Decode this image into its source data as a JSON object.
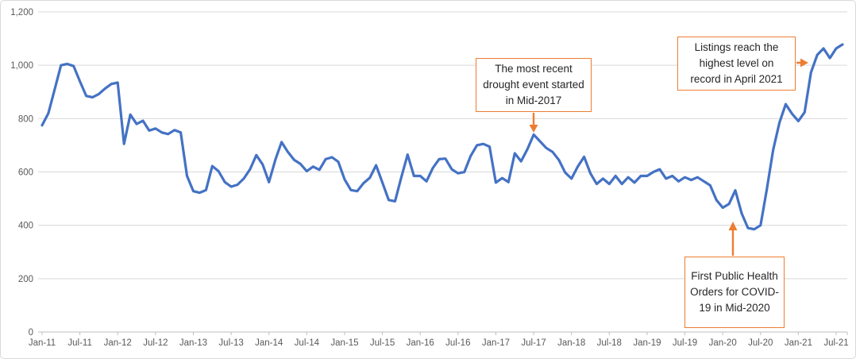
{
  "chart_data": {
    "type": "line",
    "title": "",
    "xlabel": "",
    "ylabel": "",
    "ylim": [
      0,
      1200
    ],
    "y_step": 200,
    "grid": "horizontal",
    "legend": "none",
    "y_tick_labels": [
      "0",
      "200",
      "400",
      "600",
      "800",
      "1,000",
      "1,200"
    ],
    "x_tick_labels": [
      "Jan-11",
      "Jul-11",
      "Jan-12",
      "Jul-12",
      "Jan-13",
      "Jul-13",
      "Jan-14",
      "Jul-14",
      "Jan-15",
      "Jul-15",
      "Jan-16",
      "Jul-16",
      "Jan-17",
      "Jul-17",
      "Jan-18",
      "Jul-18",
      "Jan-19",
      "Jul-19",
      "Jan-20",
      "Jul-20",
      "Jan-21",
      "Jul-21"
    ],
    "series": [
      {
        "name": "listings",
        "frequency": "monthly",
        "start": "Jan-2011",
        "end": "Aug-2021",
        "color": "#4472C4",
        "values": [
          775,
          820,
          910,
          1000,
          1005,
          997,
          940,
          885,
          880,
          892,
          913,
          930,
          935,
          705,
          815,
          780,
          792,
          755,
          763,
          748,
          742,
          757,
          748,
          585,
          528,
          522,
          532,
          622,
          603,
          562,
          545,
          552,
          575,
          610,
          663,
          628,
          562,
          645,
          712,
          675,
          645,
          630,
          603,
          620,
          608,
          648,
          655,
          638,
          572,
          532,
          528,
          558,
          578,
          625,
          560,
          495,
          490,
          580,
          665,
          585,
          585,
          565,
          615,
          648,
          650,
          610,
          595,
          600,
          660,
          700,
          705,
          695,
          560,
          577,
          562,
          670,
          640,
          685,
          740,
          715,
          690,
          675,
          645,
          598,
          575,
          620,
          657,
          595,
          555,
          575,
          555,
          585,
          555,
          580,
          560,
          585,
          585,
          600,
          610,
          575,
          585,
          565,
          580,
          570,
          580,
          565,
          550,
          495,
          466,
          480,
          531,
          445,
          390,
          385,
          400,
          535,
          683,
          785,
          854,
          818,
          791,
          824,
          973,
          1039,
          1063,
          1027,
          1063,
          1078
        ]
      }
    ],
    "annotations": [
      {
        "id": "drought",
        "text": "The most recent drought event started in Mid-2017",
        "arrow": "down"
      },
      {
        "id": "record",
        "text": "Listings reach the highest level on record in April 2021",
        "arrow": "right"
      },
      {
        "id": "covid",
        "text": "First Public Health Orders for COVID-19 in Mid-2020",
        "arrow": "up"
      }
    ],
    "colors": {
      "line": "#4472C4",
      "annotation_accent": "#ED7D31",
      "gridline": "#D9D9D9",
      "axis_line": "#BFBFBF",
      "axis_label": "#595959"
    }
  }
}
